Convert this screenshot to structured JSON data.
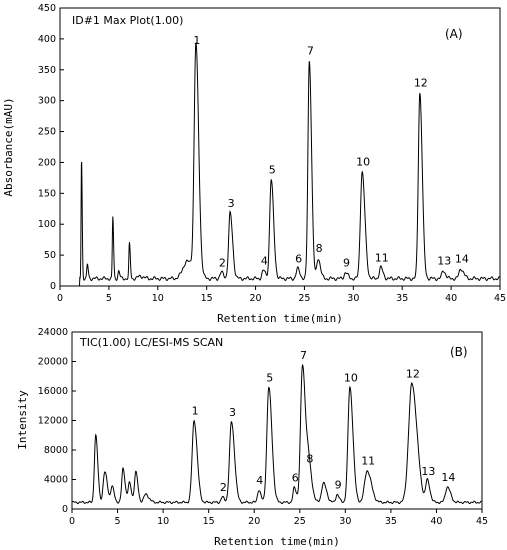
{
  "chart_data": [
    {
      "type": "line",
      "panel_label": "(A)",
      "title": "ID#1 Max Plot(1.00)",
      "xlabel": "Retention time(min)",
      "ylabel": "Absorbance(mAU)",
      "xlim": [
        0,
        45
      ],
      "ylim": [
        0,
        450
      ],
      "xticks": [
        "0",
        "5",
        "10",
        "15",
        "20",
        "25",
        "30",
        "35",
        "40",
        "45"
      ],
      "yticks": [
        "0",
        "50",
        "100",
        "150",
        "200",
        "250",
        "300",
        "350",
        "400",
        "450"
      ],
      "baseline": 12,
      "peaks": [
        {
          "label": "",
          "x": 2.2,
          "y": 208,
          "w": 0.06
        },
        {
          "label": "",
          "x": 2.8,
          "y": 35,
          "w": 0.08
        },
        {
          "label": "",
          "x": 5.4,
          "y": 112,
          "w": 0.07
        },
        {
          "label": "",
          "x": 6.0,
          "y": 24,
          "w": 0.1
        },
        {
          "label": "",
          "x": 7.1,
          "y": 68,
          "w": 0.08
        },
        {
          "label": "",
          "x": 8.2,
          "y": 16,
          "w": 0.3
        },
        {
          "label": "1",
          "x": 13.9,
          "y": 382,
          "w": 0.25
        },
        {
          "label": "",
          "x": 13.0,
          "y": 40,
          "w": 0.6
        },
        {
          "label": "2",
          "x": 16.5,
          "y": 22,
          "w": 0.2
        },
        {
          "label": "3",
          "x": 17.4,
          "y": 118,
          "w": 0.22
        },
        {
          "label": "4",
          "x": 20.8,
          "y": 25,
          "w": 0.2
        },
        {
          "label": "5",
          "x": 21.6,
          "y": 172,
          "w": 0.22
        },
        {
          "label": "6",
          "x": 24.3,
          "y": 28,
          "w": 0.2
        },
        {
          "label": "7",
          "x": 25.5,
          "y": 365,
          "w": 0.2
        },
        {
          "label": "8",
          "x": 26.4,
          "y": 45,
          "w": 0.2
        },
        {
          "label": "9",
          "x": 29.2,
          "y": 22,
          "w": 0.2
        },
        {
          "label": "10",
          "x": 30.9,
          "y": 185,
          "w": 0.25
        },
        {
          "label": "11",
          "x": 32.8,
          "y": 30,
          "w": 0.2
        },
        {
          "label": "12",
          "x": 36.8,
          "y": 313,
          "w": 0.22
        },
        {
          "label": "13",
          "x": 39.2,
          "y": 25,
          "w": 0.2
        },
        {
          "label": "14",
          "x": 41.0,
          "y": 28,
          "w": 0.25
        }
      ]
    },
    {
      "type": "line",
      "panel_label": "(B)",
      "title": "TIC(1.00)  LC/ESI-MS SCAN",
      "xlabel": "Retention time(min)",
      "ylabel": "Intensity",
      "xlim": [
        0,
        45
      ],
      "ylim": [
        0,
        24000
      ],
      "xticks": [
        "0",
        "5",
        "10",
        "15",
        "20",
        "25",
        "30",
        "35",
        "40",
        "45"
      ],
      "yticks": [
        "0",
        "4000",
        "8000",
        "12000",
        "16000",
        "20000",
        "24000"
      ],
      "baseline": 900,
      "peaks": [
        {
          "label": "",
          "x": 2.6,
          "y": 10000,
          "w": 0.2
        },
        {
          "label": "",
          "x": 3.6,
          "y": 5000,
          "w": 0.25
        },
        {
          "label": "",
          "x": 4.4,
          "y": 3000,
          "w": 0.2
        },
        {
          "label": "",
          "x": 5.6,
          "y": 5500,
          "w": 0.2
        },
        {
          "label": "",
          "x": 6.3,
          "y": 3500,
          "w": 0.2
        },
        {
          "label": "",
          "x": 7.0,
          "y": 5000,
          "w": 0.2
        },
        {
          "label": "",
          "x": 8.1,
          "y": 2000,
          "w": 0.3
        },
        {
          "label": "1",
          "x": 13.4,
          "y": 12000,
          "w": 0.3
        },
        {
          "label": "2",
          "x": 16.5,
          "y": 1600,
          "w": 0.2
        },
        {
          "label": "3",
          "x": 17.5,
          "y": 11800,
          "w": 0.3
        },
        {
          "label": "4",
          "x": 20.5,
          "y": 2600,
          "w": 0.2
        },
        {
          "label": "5",
          "x": 21.6,
          "y": 16500,
          "w": 0.3
        },
        {
          "label": "6",
          "x": 24.4,
          "y": 2900,
          "w": 0.2
        },
        {
          "label": "7",
          "x": 25.3,
          "y": 19500,
          "w": 0.3
        },
        {
          "label": "8",
          "x": 26.0,
          "y": 5500,
          "w": 0.3
        },
        {
          "label": "",
          "x": 27.6,
          "y": 3500,
          "w": 0.3
        },
        {
          "label": "9",
          "x": 29.1,
          "y": 2000,
          "w": 0.2
        },
        {
          "label": "10",
          "x": 30.5,
          "y": 16500,
          "w": 0.3
        },
        {
          "label": "11",
          "x": 32.4,
          "y": 5200,
          "w": 0.4
        },
        {
          "label": "12",
          "x": 37.3,
          "y": 17000,
          "w": 0.5
        },
        {
          "label": "13",
          "x": 39.0,
          "y": 3800,
          "w": 0.25
        },
        {
          "label": "14",
          "x": 41.2,
          "y": 3000,
          "w": 0.3
        }
      ]
    }
  ]
}
